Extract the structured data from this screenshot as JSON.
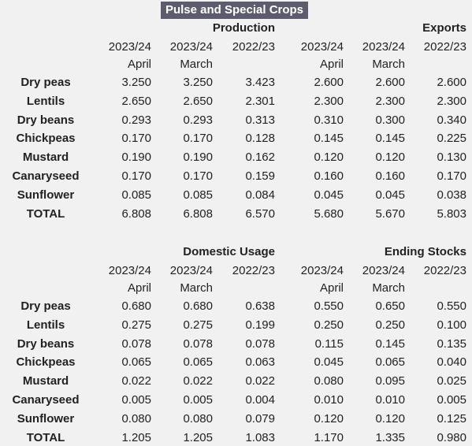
{
  "title": "Pulse and Special Crops",
  "sections": [
    {
      "groups": [
        {
          "title": "Production",
          "columns": [
            {
              "year": "2023/24",
              "month": "April"
            },
            {
              "year": "2023/24",
              "month": "March"
            },
            {
              "year": "2022/23"
            }
          ]
        },
        {
          "title": "Exports",
          "columns": [
            {
              "year": "2023/24",
              "month": "April"
            },
            {
              "year": "2023/24",
              "month": "March"
            },
            {
              "year": "2022/23"
            }
          ]
        }
      ],
      "rows": [
        {
          "label": "Dry peas",
          "values": [
            "3.250",
            "3.250",
            "3.423",
            "2.600",
            "2.600",
            "2.600"
          ]
        },
        {
          "label": "Lentils",
          "values": [
            "2.650",
            "2.650",
            "2.301",
            "2.300",
            "2.300",
            "2.300"
          ]
        },
        {
          "label": "Dry beans",
          "values": [
            "0.293",
            "0.293",
            "0.313",
            "0.310",
            "0.300",
            "0.340"
          ]
        },
        {
          "label": "Chickpeas",
          "values": [
            "0.170",
            "0.170",
            "0.128",
            "0.145",
            "0.145",
            "0.225"
          ]
        },
        {
          "label": "Mustard",
          "values": [
            "0.190",
            "0.190",
            "0.162",
            "0.120",
            "0.120",
            "0.130"
          ]
        },
        {
          "label": "Canaryseed",
          "values": [
            "0.170",
            "0.170",
            "0.159",
            "0.160",
            "0.160",
            "0.170"
          ]
        },
        {
          "label": "Sunflower",
          "values": [
            "0.085",
            "0.085",
            "0.084",
            "0.045",
            "0.045",
            "0.038"
          ]
        },
        {
          "label": "TOTAL",
          "values": [
            "6.808",
            "6.808",
            "6.570",
            "5.680",
            "5.670",
            "5.803"
          ]
        }
      ]
    },
    {
      "groups": [
        {
          "title": "Domestic Usage",
          "columns": [
            {
              "year": "2023/24",
              "month": "April"
            },
            {
              "year": "2023/24",
              "month": "March"
            },
            {
              "year": "2022/23"
            }
          ]
        },
        {
          "title": "Ending Stocks",
          "columns": [
            {
              "year": "2023/24",
              "month": "April"
            },
            {
              "year": "2023/24",
              "month": "March"
            },
            {
              "year": "2022/23"
            }
          ]
        }
      ],
      "rows": [
        {
          "label": "Dry peas",
          "values": [
            "0.680",
            "0.680",
            "0.638",
            "0.550",
            "0.650",
            "0.550"
          ]
        },
        {
          "label": "Lentils",
          "values": [
            "0.275",
            "0.275",
            "0.199",
            "0.250",
            "0.250",
            "0.100"
          ]
        },
        {
          "label": "Dry beans",
          "values": [
            "0.078",
            "0.078",
            "0.078",
            "0.115",
            "0.145",
            "0.135"
          ]
        },
        {
          "label": "Chickpeas",
          "values": [
            "0.065",
            "0.065",
            "0.063",
            "0.045",
            "0.065",
            "0.040"
          ]
        },
        {
          "label": "Mustard",
          "values": [
            "0.022",
            "0.022",
            "0.022",
            "0.080",
            "0.095",
            "0.025"
          ]
        },
        {
          "label": "Canaryseed",
          "values": [
            "0.005",
            "0.005",
            "0.004",
            "0.010",
            "0.010",
            "0.005"
          ]
        },
        {
          "label": "Sunflower",
          "values": [
            "0.080",
            "0.080",
            "0.079",
            "0.120",
            "0.120",
            "0.125"
          ]
        },
        {
          "label": "TOTAL",
          "values": [
            "1.205",
            "1.205",
            "1.083",
            "1.170",
            "1.335",
            "0.980"
          ]
        }
      ]
    }
  ]
}
